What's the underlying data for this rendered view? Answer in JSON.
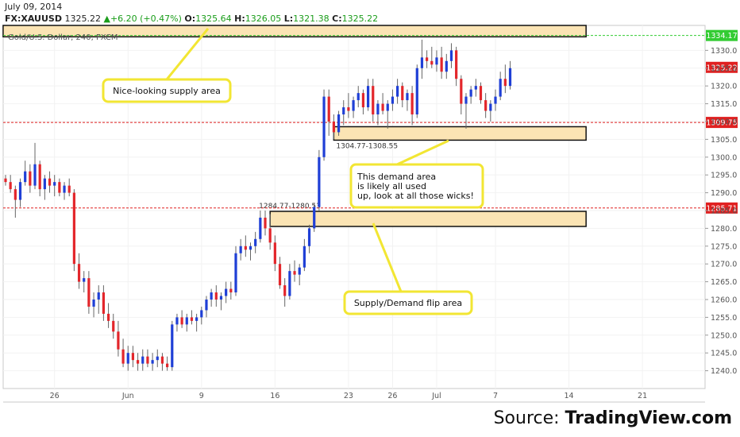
{
  "header": {
    "date": "July 09, 2014",
    "symbol": "FX:XAUUSD",
    "last": "1325.22",
    "change_arrow": "▲",
    "change": "+6.20 (+0.47%)",
    "o_label": "O:",
    "o_value": "1325.64",
    "h_label": "H:",
    "h_value": "1326.05",
    "l_label": "L:",
    "l_value": "1321.38",
    "c_label": "C:",
    "c_value": "1325.22"
  },
  "source": {
    "prefix": "Source: ",
    "name": "TradingView.com"
  },
  "chart_data": {
    "type": "candlestick",
    "instrument_label": "Gold/U.S. Dollar, 240, FXCM",
    "ylim": [
      1235,
      1337
    ],
    "yticks": [
      1240,
      1245,
      1250,
      1255,
      1260,
      1265,
      1270,
      1275,
      1280,
      1285,
      1290,
      1295,
      1300,
      1305,
      1310,
      1315,
      1320,
      1325,
      1330
    ],
    "xticks": [
      {
        "label": "26",
        "bar": 10
      },
      {
        "label": "Jun",
        "bar": 25
      },
      {
        "label": "9",
        "bar": 40
      },
      {
        "label": "16",
        "bar": 55
      },
      {
        "label": "23",
        "bar": 70
      },
      {
        "label": "26",
        "bar": 79
      },
      {
        "label": "Jul",
        "bar": 88
      },
      {
        "label": "7",
        "bar": 100
      },
      {
        "label": "14",
        "bar": 115
      },
      {
        "label": "21",
        "bar": 130
      }
    ],
    "hlines": [
      {
        "value": 1334.17,
        "label": "1334.17",
        "color": "#33cc33"
      },
      {
        "value": 1309.75,
        "label": "1309.75",
        "color": "#e02020"
      },
      {
        "value": 1285.71,
        "label": "1285.71",
        "color": "#e02020"
      }
    ],
    "price_label": {
      "value": 1325.22,
      "label": "1325.22",
      "color": "#e02020"
    },
    "zones": [
      {
        "name": "supply",
        "y_top": 1337.0,
        "y_bottom": 1333.8,
        "x_from_bar": -0.5,
        "x_to_bar": 118.5
      },
      {
        "name": "demand",
        "y_top": 1308.55,
        "y_bottom": 1304.77,
        "x_from_bar": 67,
        "x_to_bar": 118.5,
        "label": "1304.77-1308.55"
      },
      {
        "name": "flip",
        "y_top": 1284.77,
        "y_bottom": 1280.53,
        "x_from_bar": 54,
        "x_to_bar": 118.5,
        "label": "1284.77-1280.53"
      }
    ],
    "annotations": [
      {
        "text": [
          "Nice-looking supply area"
        ]
      },
      {
        "text": [
          "This demand area",
          "is likely all used",
          "up, look at all those wicks!"
        ]
      },
      {
        "text": [
          "Supply/Demand flip area"
        ]
      }
    ],
    "bars": [
      [
        1294,
        1295,
        1292,
        1293
      ],
      [
        1293,
        1295,
        1290,
        1291
      ],
      [
        1291,
        1292,
        1283,
        1288
      ],
      [
        1288,
        1294,
        1286,
        1293
      ],
      [
        1293,
        1299,
        1292,
        1296
      ],
      [
        1296,
        1298,
        1290,
        1292
      ],
      [
        1292,
        1304,
        1291,
        1298
      ],
      [
        1298,
        1299,
        1289,
        1291
      ],
      [
        1291,
        1295,
        1288,
        1294
      ],
      [
        1294,
        1296,
        1290,
        1292
      ],
      [
        1292,
        1295,
        1289,
        1293
      ],
      [
        1293,
        1294,
        1289,
        1290
      ],
      [
        1290,
        1293,
        1288,
        1292
      ],
      [
        1292,
        1294,
        1289,
        1290
      ],
      [
        1290,
        1291,
        1268,
        1270
      ],
      [
        1270,
        1273,
        1263,
        1265
      ],
      [
        1265,
        1268,
        1262,
        1266
      ],
      [
        1266,
        1268,
        1256,
        1258
      ],
      [
        1258,
        1262,
        1255,
        1260
      ],
      [
        1260,
        1264,
        1256,
        1262
      ],
      [
        1262,
        1264,
        1254,
        1256
      ],
      [
        1256,
        1259,
        1252,
        1254
      ],
      [
        1254,
        1256,
        1249,
        1251
      ],
      [
        1251,
        1254,
        1244,
        1246
      ],
      [
        1246,
        1249,
        1241,
        1242
      ],
      [
        1242,
        1247,
        1240,
        1245
      ],
      [
        1245,
        1247,
        1241,
        1243
      ],
      [
        1243,
        1245,
        1240,
        1242
      ],
      [
        1242,
        1246,
        1240,
        1244
      ],
      [
        1244,
        1246,
        1241,
        1242
      ],
      [
        1242,
        1245,
        1240,
        1243
      ],
      [
        1243,
        1246,
        1241,
        1244
      ],
      [
        1244,
        1245,
        1240,
        1242
      ],
      [
        1242,
        1244,
        1240,
        1241
      ],
      [
        1241,
        1254,
        1240,
        1253
      ],
      [
        1253,
        1256,
        1251,
        1255
      ],
      [
        1255,
        1257,
        1252,
        1253
      ],
      [
        1253,
        1256,
        1251,
        1255
      ],
      [
        1255,
        1257,
        1253,
        1254
      ],
      [
        1254,
        1256,
        1251,
        1255
      ],
      [
        1255,
        1258,
        1253,
        1257
      ],
      [
        1257,
        1261,
        1255,
        1260
      ],
      [
        1260,
        1263,
        1258,
        1262
      ],
      [
        1262,
        1264,
        1258,
        1260
      ],
      [
        1260,
        1262,
        1257,
        1261
      ],
      [
        1261,
        1265,
        1259,
        1263
      ],
      [
        1263,
        1265,
        1260,
        1262
      ],
      [
        1262,
        1275,
        1261,
        1273
      ],
      [
        1273,
        1277,
        1271,
        1275
      ],
      [
        1275,
        1278,
        1272,
        1274
      ],
      [
        1274,
        1276,
        1271,
        1275
      ],
      [
        1275,
        1279,
        1273,
        1277
      ],
      [
        1277,
        1285,
        1276,
        1283
      ],
      [
        1283,
        1285,
        1278,
        1280
      ],
      [
        1280,
        1284,
        1274,
        1276
      ],
      [
        1276,
        1278,
        1268,
        1270
      ],
      [
        1270,
        1272,
        1263,
        1264
      ],
      [
        1264,
        1266,
        1258,
        1261
      ],
      [
        1261,
        1270,
        1260,
        1268
      ],
      [
        1268,
        1271,
        1265,
        1267
      ],
      [
        1267,
        1270,
        1264,
        1269
      ],
      [
        1269,
        1277,
        1268,
        1275
      ],
      [
        1275,
        1281,
        1273,
        1280
      ],
      [
        1280,
        1287,
        1279,
        1286
      ],
      [
        1286,
        1302,
        1285,
        1300
      ],
      [
        1300,
        1319,
        1299,
        1317
      ],
      [
        1317,
        1319,
        1306,
        1310
      ],
      [
        1310,
        1312,
        1305,
        1307
      ],
      [
        1307,
        1313,
        1306,
        1312
      ],
      [
        1312,
        1316,
        1309,
        1314
      ],
      [
        1314,
        1318,
        1311,
        1313
      ],
      [
        1313,
        1317,
        1311,
        1316
      ],
      [
        1316,
        1320,
        1314,
        1318
      ],
      [
        1318,
        1319,
        1312,
        1314
      ],
      [
        1314,
        1322,
        1313,
        1320
      ],
      [
        1320,
        1322,
        1310,
        1312
      ],
      [
        1312,
        1316,
        1309,
        1315
      ],
      [
        1315,
        1318,
        1312,
        1313
      ],
      [
        1313,
        1316,
        1308,
        1315
      ],
      [
        1315,
        1319,
        1313,
        1317
      ],
      [
        1317,
        1322,
        1315,
        1320
      ],
      [
        1320,
        1321,
        1314,
        1316
      ],
      [
        1316,
        1319,
        1313,
        1318
      ],
      [
        1318,
        1320,
        1309,
        1312
      ],
      [
        1312,
        1326,
        1311,
        1325
      ],
      [
        1325,
        1333,
        1322,
        1328
      ],
      [
        1328,
        1330,
        1325,
        1327
      ],
      [
        1327,
        1331,
        1325,
        1326
      ],
      [
        1326,
        1330,
        1324,
        1328
      ],
      [
        1328,
        1331,
        1322,
        1324
      ],
      [
        1324,
        1329,
        1322,
        1327
      ],
      [
        1327,
        1332,
        1325,
        1330
      ],
      [
        1330,
        1331,
        1320,
        1322
      ],
      [
        1322,
        1323,
        1312,
        1315
      ],
      [
        1315,
        1318,
        1308,
        1317
      ],
      [
        1317,
        1320,
        1315,
        1319
      ],
      [
        1319,
        1322,
        1317,
        1320
      ],
      [
        1320,
        1321,
        1315,
        1316
      ],
      [
        1316,
        1318,
        1311,
        1313
      ],
      [
        1313,
        1316,
        1310,
        1315
      ],
      [
        1315,
        1319,
        1313,
        1317
      ],
      [
        1317,
        1324,
        1316,
        1322
      ],
      [
        1322,
        1326,
        1318,
        1320
      ],
      [
        1320,
        1327,
        1319,
        1325
      ]
    ]
  }
}
